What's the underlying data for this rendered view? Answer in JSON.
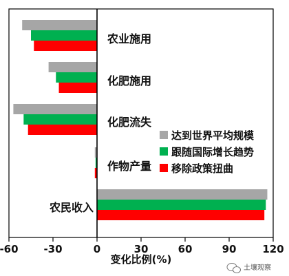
{
  "chart_data": {
    "type": "bar",
    "orientation": "horizontal",
    "categories": [
      "农业施用",
      "化肥施用",
      "化肥流失",
      "作物产量",
      "农民收入"
    ],
    "series": [
      {
        "name": "达到世界平均规模",
        "color": "#a6a6a6",
        "values": [
          -51,
          -33,
          -57,
          -1.5,
          116
        ]
      },
      {
        "name": "跟随国际增长趋势",
        "color": "#00b050",
        "values": [
          -45,
          -28,
          -50,
          -1,
          115
        ]
      },
      {
        "name": "移除政策扭曲",
        "color": "#ff0000",
        "values": [
          -43,
          -26,
          -47,
          -1.5,
          114
        ]
      }
    ],
    "xlim": [
      -60,
      120
    ],
    "xticks": [
      "-60",
      "-30",
      "0",
      "30",
      "60",
      "90",
      "120"
    ],
    "xlabel": "变化比例(%)",
    "ylabel": "",
    "legend_position": "right-middle",
    "grid": false
  },
  "watermark": {
    "text": "土壤观察",
    "icon": "wechat-chat-bubble-icon"
  }
}
